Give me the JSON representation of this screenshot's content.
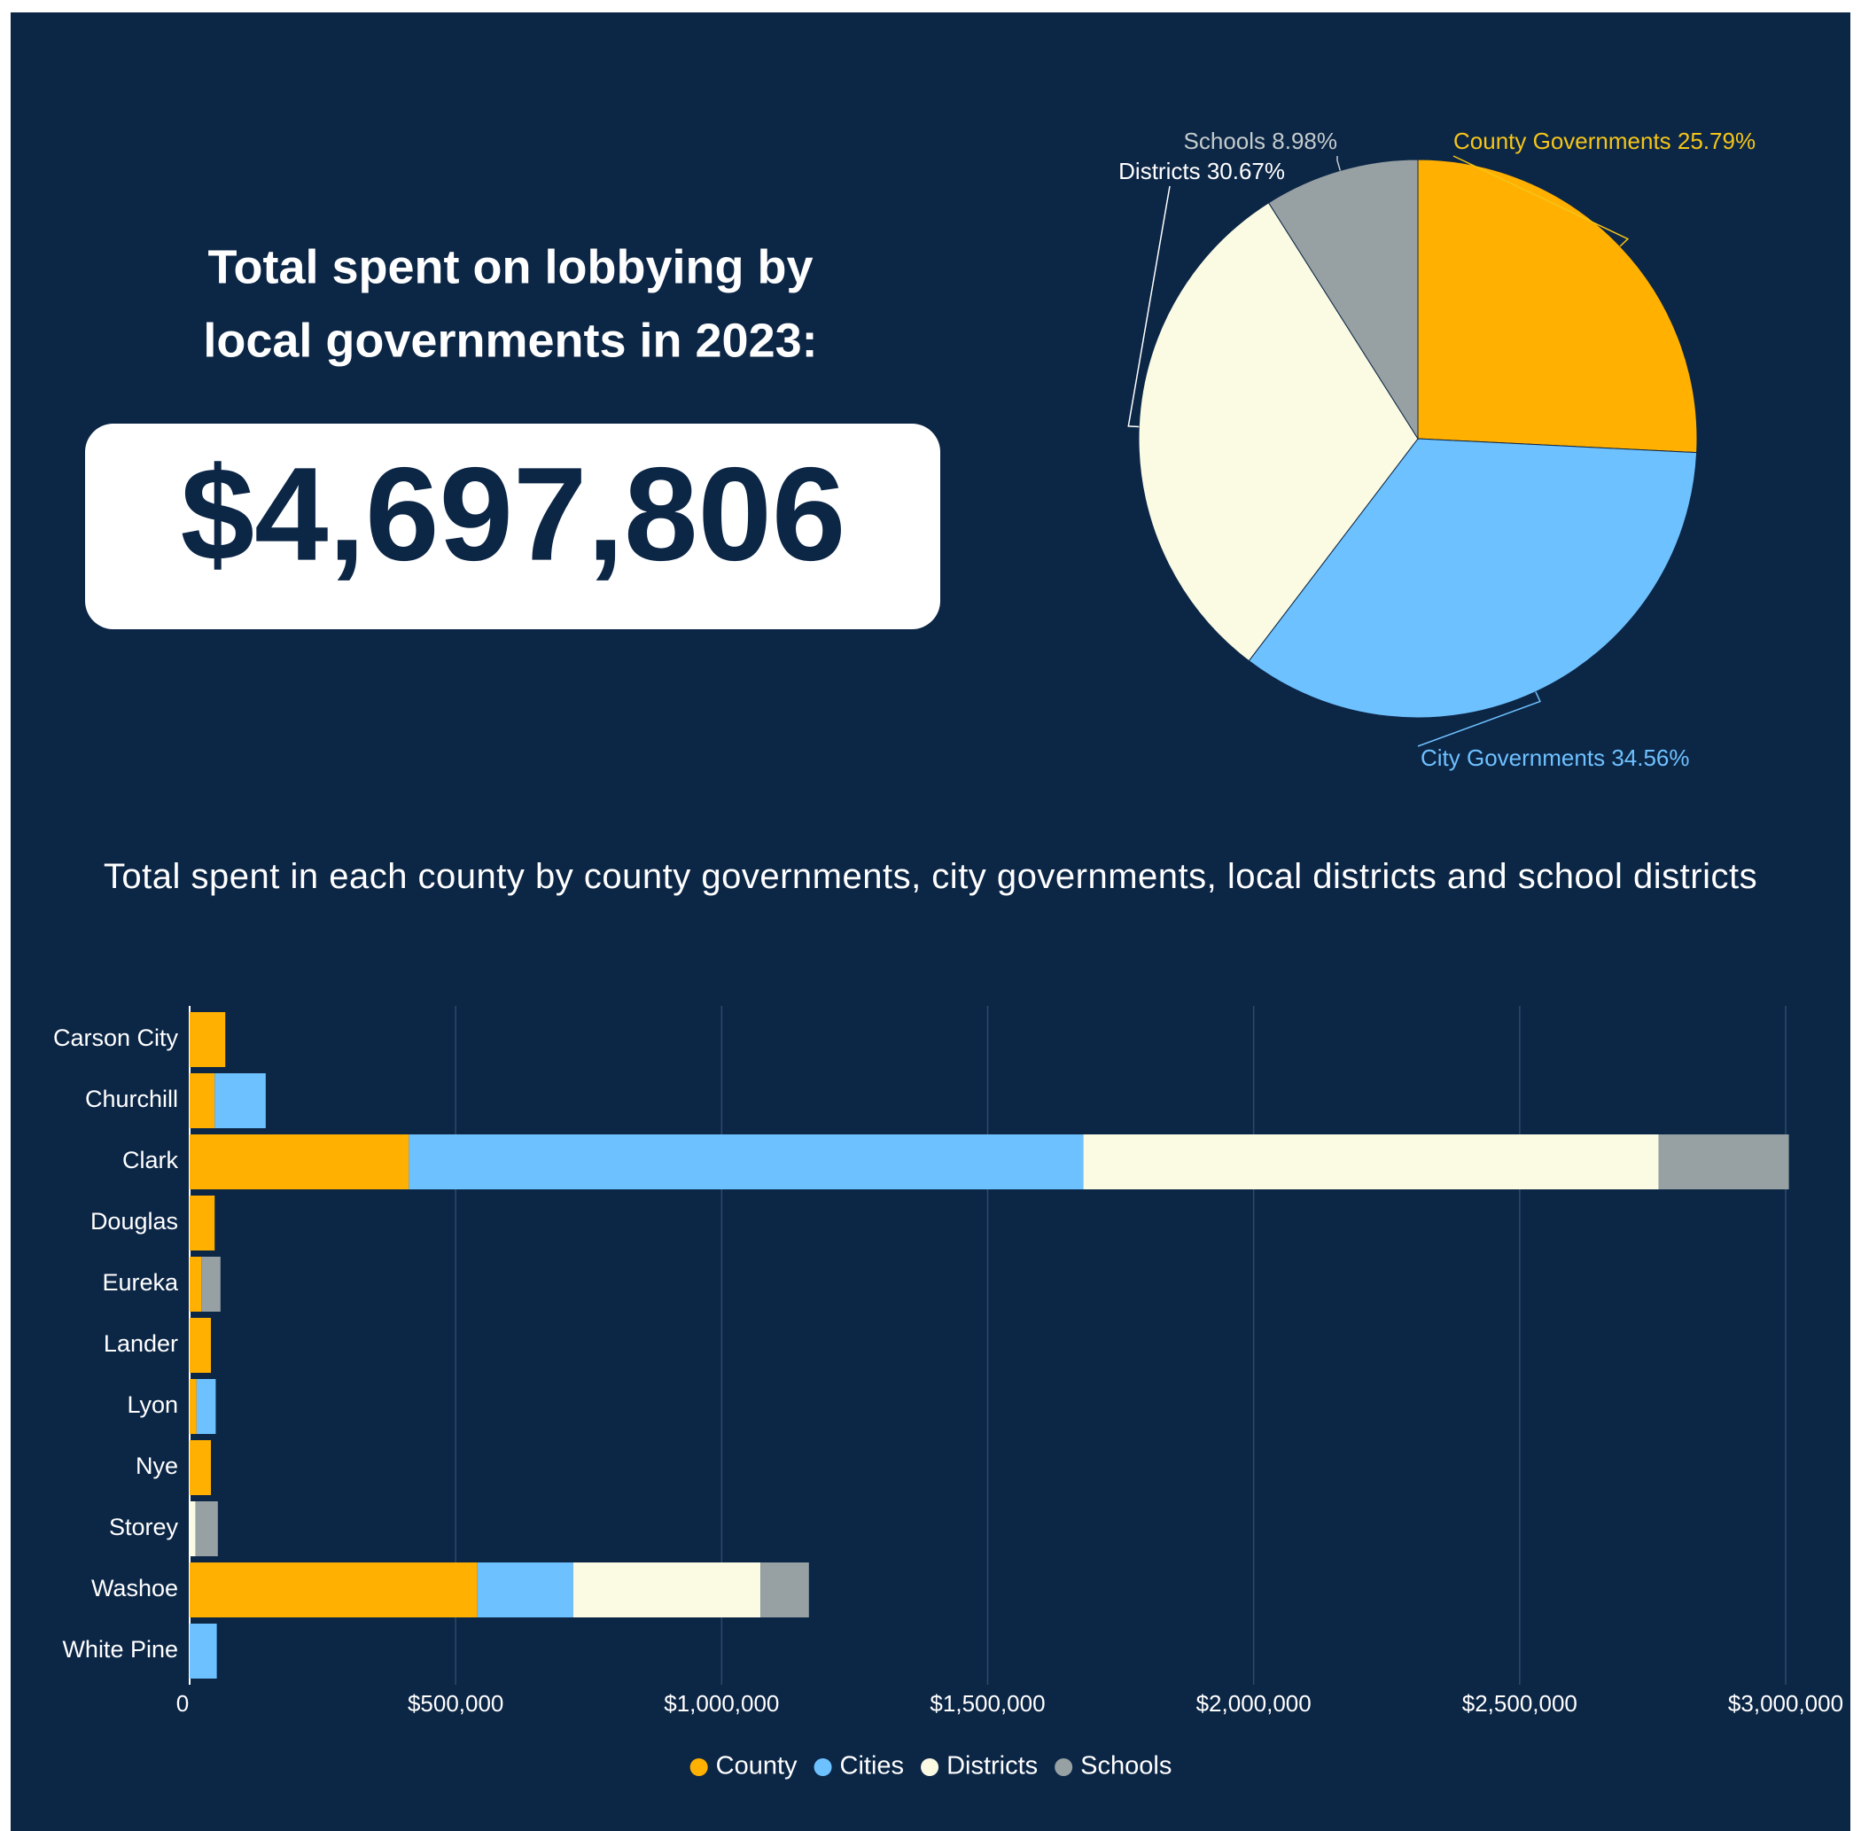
{
  "headline": [
    "Total spent on lobbying by",
    "local governments in 2023:"
  ],
  "total": "$4,697,806",
  "chart_data": [
    {
      "type": "pie",
      "categories": [
        "County Governments",
        "City Governments",
        "Districts",
        "Schools"
      ],
      "values": [
        25.79,
        34.56,
        30.67,
        8.98
      ],
      "value_labels": [
        "25.79%",
        "34.56%",
        "30.67%",
        "8.98%"
      ],
      "colors": [
        "#ffb000",
        "#6ec1ff",
        "#fbfbe4",
        "#97a1a3"
      ],
      "label_colors": [
        "#f5c518",
        "#6ec1ff",
        "#ffffff",
        "#c3cbcc"
      ]
    },
    {
      "type": "bar",
      "orientation": "horizontal",
      "stacked": true,
      "title": "Total spent in each county by county governments, city governments, local districts and school districts",
      "categories": [
        "Carson City",
        "Churchill",
        "Clark",
        "Douglas",
        "Eureka",
        "Lander",
        "Lyon",
        "Nye",
        "Storey",
        "Washoe",
        "White Pine"
      ],
      "series": [
        {
          "name": "County",
          "color": "#ffb000",
          "values": [
            67000,
            47000,
            412000,
            47000,
            22000,
            40000,
            13000,
            40000,
            0,
            541000,
            0
          ]
        },
        {
          "name": "Cities",
          "color": "#6ec1ff",
          "values": [
            0,
            96000,
            1268000,
            0,
            0,
            0,
            36000,
            0,
            0,
            180000,
            51000
          ]
        },
        {
          "name": "Districts",
          "color": "#fbfbe4",
          "values": [
            0,
            0,
            1081000,
            0,
            0,
            0,
            0,
            0,
            11000,
            352000,
            0
          ]
        },
        {
          "name": "Schools",
          "color": "#97a1a3",
          "values": [
            0,
            0,
            245000,
            0,
            36000,
            0,
            0,
            0,
            42000,
            91000,
            0
          ]
        }
      ],
      "xlim": [
        0,
        3000000
      ],
      "xticks": [
        0,
        {
          "value": 500000,
          "label": "$500,000"
        },
        {
          "value": 1000000,
          "label": "$1,000,000"
        },
        {
          "value": 1500000,
          "label": "$1,500,000"
        },
        {
          "value": 2000000,
          "label": "$2,000,000"
        },
        {
          "value": 2500000,
          "label": "$2,500,000"
        },
        {
          "value": 3000000,
          "label": "$3,000,000"
        }
      ],
      "grid": true,
      "legend": "bottom"
    }
  ]
}
